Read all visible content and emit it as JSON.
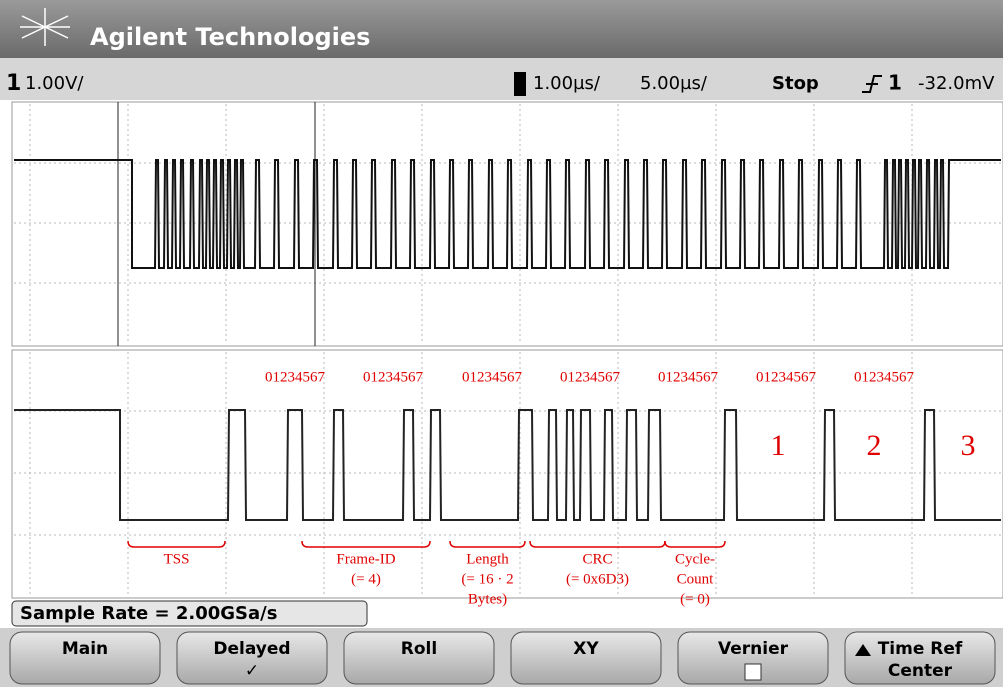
{
  "header": {
    "brand": "Agilent Technologies"
  },
  "status": {
    "channel": "1",
    "volts_per_div": "1.00V/",
    "main_timebase": "1.00µs/",
    "delayed_timebase": "5.00µs/",
    "run_state": "Stop",
    "trigger_source": "1",
    "trigger_level": "-32.0mV"
  },
  "annotations": {
    "byte_labels": [
      "01234567",
      "01234567",
      "01234567",
      "01234567",
      "01234567",
      "01234567",
      "01234567"
    ],
    "byte_counts": [
      "1",
      "2",
      "3"
    ],
    "segments": [
      {
        "lines": [
          "TSS"
        ]
      },
      {
        "lines": [
          "Frame-ID",
          "(= 4)"
        ]
      },
      {
        "lines": [
          "Length",
          "(= 16 · 2",
          "Bytes)"
        ]
      },
      {
        "lines": [
          "CRC",
          "(= 0x6D3)"
        ]
      },
      {
        "lines": [
          "Cycle-",
          "Count",
          "(= 0)"
        ]
      }
    ]
  },
  "sample_rate": "Sample Rate = 2.00GSa/s",
  "softkeys": [
    {
      "lines": [
        "Main"
      ]
    },
    {
      "lines": [
        "Delayed",
        "✓"
      ]
    },
    {
      "lines": [
        "Roll"
      ]
    },
    {
      "lines": [
        "XY"
      ]
    },
    {
      "lines": [
        "Vernier"
      ]
    },
    {
      "lines": [
        "Time Ref",
        "Center"
      ]
    }
  ]
}
